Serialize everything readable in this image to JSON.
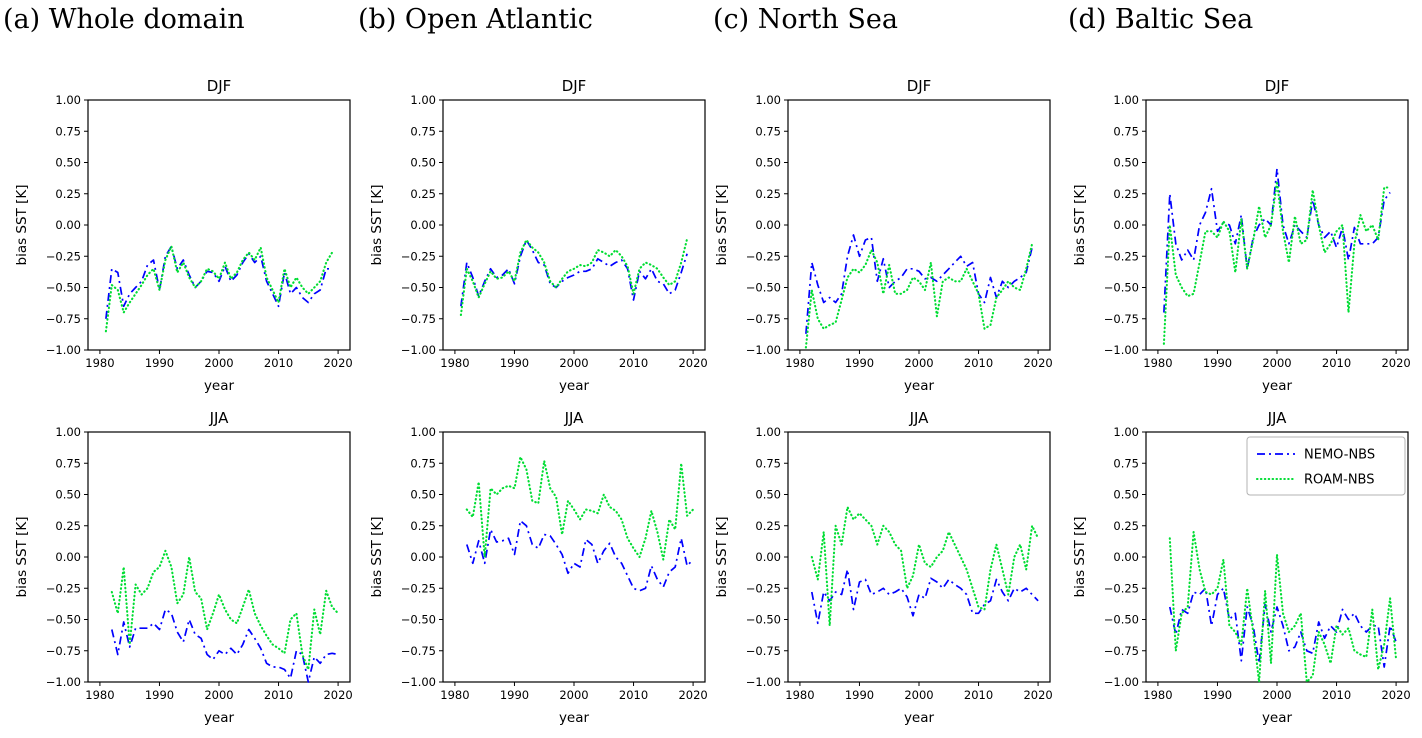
{
  "panels": [
    "(a) Whole domain",
    "(b) Open Atlantic",
    "(c) North Sea",
    "(d) Baltic Sea"
  ],
  "colors": {
    "nemo": "#0000ff",
    "roam": "#00dd33",
    "axis": "#000000",
    "legend_border": "#b3b3b3"
  },
  "legend": {
    "entries": [
      {
        "label": "NEMO-NBS",
        "style": "dashdot",
        "color_key": "nemo"
      },
      {
        "label": "ROAM-NBS",
        "style": "dotted",
        "color_key": "roam"
      }
    ],
    "position": "upper right",
    "panel": "d-jja"
  },
  "chart_data": [
    {
      "id": "a-djf",
      "type": "line",
      "title": "DJF",
      "panel": "(a) Whole domain",
      "xlabel": "year",
      "ylabel": "bias SST [K]",
      "xlim": [
        1978,
        2022
      ],
      "ylim": [
        -1,
        1
      ],
      "xticks": [
        1980,
        1990,
        2000,
        2010,
        2020
      ],
      "yticks": [
        1.0,
        0.75,
        0.5,
        0.25,
        0.0,
        -0.25,
        -0.5,
        -0.75,
        -1.0
      ],
      "x_start": 1981,
      "x_step": 1,
      "grid": false,
      "series": [
        {
          "name": "NEMO-NBS",
          "color_key": "nemo",
          "style": "dashdot",
          "values": [
            -0.75,
            -0.35,
            -0.38,
            -0.65,
            -0.55,
            -0.5,
            -0.45,
            -0.32,
            -0.28,
            -0.52,
            -0.25,
            -0.17,
            -0.35,
            -0.28,
            -0.4,
            -0.5,
            -0.45,
            -0.37,
            -0.38,
            -0.45,
            -0.33,
            -0.45,
            -0.4,
            -0.3,
            -0.23,
            -0.3,
            -0.25,
            -0.45,
            -0.55,
            -0.65,
            -0.38,
            -0.55,
            -0.5,
            -0.58,
            -0.62,
            -0.55,
            -0.52,
            -0.35,
            -0.35
          ]
        },
        {
          "name": "ROAM-NBS",
          "color_key": "roam",
          "style": "dotted",
          "values": [
            -0.85,
            -0.48,
            -0.52,
            -0.7,
            -0.62,
            -0.55,
            -0.48,
            -0.4,
            -0.35,
            -0.52,
            -0.28,
            -0.17,
            -0.38,
            -0.3,
            -0.42,
            -0.5,
            -0.45,
            -0.35,
            -0.37,
            -0.43,
            -0.3,
            -0.43,
            -0.38,
            -0.28,
            -0.22,
            -0.28,
            -0.18,
            -0.42,
            -0.52,
            -0.62,
            -0.35,
            -0.5,
            -0.42,
            -0.5,
            -0.55,
            -0.5,
            -0.45,
            -0.3,
            -0.22
          ]
        }
      ]
    },
    {
      "id": "b-djf",
      "type": "line",
      "title": "DJF",
      "panel": "(b) Open Atlantic",
      "xlabel": "year",
      "ylabel": "bias SST [K]",
      "xlim": [
        1978,
        2022
      ],
      "ylim": [
        -1,
        1
      ],
      "xticks": [
        1980,
        1990,
        2000,
        2010,
        2020
      ],
      "yticks": [
        1.0,
        0.75,
        0.5,
        0.25,
        0.0,
        -0.25,
        -0.5,
        -0.75,
        -1.0
      ],
      "x_start": 1981,
      "x_step": 1,
      "grid": false,
      "series": [
        {
          "name": "NEMO-NBS",
          "color_key": "nemo",
          "style": "dashdot",
          "values": [
            -0.65,
            -0.3,
            -0.42,
            -0.57,
            -0.45,
            -0.35,
            -0.42,
            -0.4,
            -0.35,
            -0.47,
            -0.25,
            -0.12,
            -0.2,
            -0.3,
            -0.32,
            -0.47,
            -0.5,
            -0.45,
            -0.42,
            -0.4,
            -0.37,
            -0.37,
            -0.35,
            -0.27,
            -0.3,
            -0.33,
            -0.3,
            -0.28,
            -0.35,
            -0.6,
            -0.37,
            -0.43,
            -0.35,
            -0.45,
            -0.47,
            -0.55,
            -0.52,
            -0.38,
            -0.23
          ]
        },
        {
          "name": "ROAM-NBS",
          "color_key": "roam",
          "style": "dotted",
          "values": [
            -0.72,
            -0.35,
            -0.45,
            -0.58,
            -0.47,
            -0.37,
            -0.43,
            -0.42,
            -0.37,
            -0.45,
            -0.22,
            -0.12,
            -0.18,
            -0.22,
            -0.3,
            -0.45,
            -0.5,
            -0.43,
            -0.37,
            -0.35,
            -0.32,
            -0.33,
            -0.3,
            -0.2,
            -0.22,
            -0.25,
            -0.2,
            -0.25,
            -0.33,
            -0.55,
            -0.35,
            -0.3,
            -0.32,
            -0.35,
            -0.42,
            -0.48,
            -0.45,
            -0.3,
            -0.11
          ]
        }
      ]
    },
    {
      "id": "c-djf",
      "type": "line",
      "title": "DJF",
      "panel": "(c) North Sea",
      "xlabel": "year",
      "ylabel": "bias SST [K]",
      "xlim": [
        1978,
        2022
      ],
      "ylim": [
        -1,
        1
      ],
      "xticks": [
        1980,
        1990,
        2000,
        2010,
        2020
      ],
      "yticks": [
        1.0,
        0.75,
        0.5,
        0.25,
        0.0,
        -0.25,
        -0.5,
        -0.75,
        -1.0
      ],
      "x_start": 1981,
      "x_step": 1,
      "grid": false,
      "series": [
        {
          "name": "NEMO-NBS",
          "color_key": "nemo",
          "style": "dashdot",
          "values": [
            -0.87,
            -0.3,
            -0.48,
            -0.62,
            -0.58,
            -0.62,
            -0.55,
            -0.25,
            -0.08,
            -0.25,
            -0.12,
            -0.1,
            -0.45,
            -0.27,
            -0.5,
            -0.45,
            -0.42,
            -0.35,
            -0.35,
            -0.37,
            -0.43,
            -0.42,
            -0.45,
            -0.4,
            -0.35,
            -0.3,
            -0.25,
            -0.33,
            -0.3,
            -0.55,
            -0.62,
            -0.42,
            -0.58,
            -0.45,
            -0.5,
            -0.45,
            -0.42,
            -0.38,
            -0.18
          ]
        },
        {
          "name": "ROAM-NBS",
          "color_key": "roam",
          "style": "dotted",
          "values": [
            -0.98,
            -0.52,
            -0.75,
            -0.83,
            -0.8,
            -0.78,
            -0.6,
            -0.42,
            -0.35,
            -0.38,
            -0.32,
            -0.2,
            -0.3,
            -0.55,
            -0.32,
            -0.55,
            -0.55,
            -0.52,
            -0.42,
            -0.45,
            -0.52,
            -0.3,
            -0.73,
            -0.45,
            -0.42,
            -0.45,
            -0.45,
            -0.35,
            -0.45,
            -0.55,
            -0.83,
            -0.8,
            -0.58,
            -0.52,
            -0.45,
            -0.5,
            -0.52,
            -0.35,
            -0.15
          ]
        }
      ]
    },
    {
      "id": "d-djf",
      "type": "line",
      "title": "DJF",
      "panel": "(d) Baltic Sea",
      "xlabel": "year",
      "ylabel": "bias SST [K]",
      "xlim": [
        1978,
        2022
      ],
      "ylim": [
        -1,
        1
      ],
      "xticks": [
        1980,
        1990,
        2000,
        2010,
        2020
      ],
      "yticks": [
        1.0,
        0.75,
        0.5,
        0.25,
        0.0,
        -0.25,
        -0.5,
        -0.75,
        -1.0
      ],
      "x_start": 1981,
      "x_step": 1,
      "grid": false,
      "series": [
        {
          "name": "NEMO-NBS",
          "color_key": "nemo",
          "style": "dashdot",
          "values": [
            -0.7,
            0.25,
            -0.15,
            -0.28,
            -0.2,
            -0.28,
            0.0,
            0.1,
            0.29,
            -0.05,
            0.02,
            0.0,
            -0.15,
            0.08,
            -0.35,
            -0.1,
            0.0,
            0.05,
            0.0,
            0.45,
            0.0,
            -0.15,
            0.0,
            -0.05,
            -0.1,
            0.2,
            0.0,
            -0.1,
            -0.05,
            -0.18,
            -0.02,
            -0.28,
            -0.02,
            -0.15,
            -0.15,
            -0.15,
            -0.1,
            0.2,
            0.26
          ]
        },
        {
          "name": "ROAM-NBS",
          "color_key": "roam",
          "style": "dotted",
          "values": [
            -0.95,
            0.0,
            -0.4,
            -0.5,
            -0.57,
            -0.55,
            -0.3,
            -0.05,
            -0.05,
            -0.1,
            0.03,
            -0.05,
            -0.38,
            0.05,
            -0.35,
            -0.12,
            0.15,
            -0.1,
            0.0,
            0.35,
            -0.05,
            -0.3,
            0.07,
            -0.15,
            -0.12,
            0.28,
            0.0,
            -0.22,
            -0.15,
            -0.05,
            0.0,
            -0.7,
            -0.15,
            0.08,
            -0.05,
            0.0,
            -0.12,
            0.3,
            0.3
          ]
        }
      ]
    },
    {
      "id": "a-jja",
      "type": "line",
      "title": "JJA",
      "panel": "(a) Whole domain",
      "xlabel": "year",
      "ylabel": "bias SST [K]",
      "xlim": [
        1978,
        2022
      ],
      "ylim": [
        -1,
        1
      ],
      "xticks": [
        1980,
        1990,
        2000,
        2010,
        2020
      ],
      "yticks": [
        1.0,
        0.75,
        0.5,
        0.25,
        0.0,
        -0.25,
        -0.5,
        -0.75,
        -1.0
      ],
      "x_start": 1982,
      "x_step": 1,
      "grid": false,
      "series": [
        {
          "name": "NEMO-NBS",
          "color_key": "nemo",
          "style": "dashdot",
          "values": [
            -0.58,
            -0.78,
            -0.52,
            -0.72,
            -0.57,
            -0.57,
            -0.57,
            -0.53,
            -0.58,
            -0.42,
            -0.45,
            -0.6,
            -0.68,
            -0.5,
            -0.62,
            -0.65,
            -0.78,
            -0.82,
            -0.75,
            -0.78,
            -0.73,
            -0.78,
            -0.7,
            -0.58,
            -0.65,
            -0.73,
            -0.85,
            -0.88,
            -0.88,
            -0.9,
            -0.97,
            -0.75,
            -0.78,
            -1.0,
            -0.8,
            -0.85,
            -0.78,
            -0.77,
            -0.78
          ]
        },
        {
          "name": "ROAM-NBS",
          "color_key": "roam",
          "style": "dotted",
          "values": [
            -0.28,
            -0.45,
            -0.08,
            -0.7,
            -0.22,
            -0.3,
            -0.25,
            -0.12,
            -0.08,
            0.05,
            -0.08,
            -0.37,
            -0.3,
            0.0,
            -0.28,
            -0.33,
            -0.58,
            -0.45,
            -0.3,
            -0.42,
            -0.5,
            -0.53,
            -0.4,
            -0.26,
            -0.45,
            -0.55,
            -0.63,
            -0.7,
            -0.73,
            -0.77,
            -0.5,
            -0.45,
            -0.78,
            -0.9,
            -0.42,
            -0.62,
            -0.27,
            -0.4,
            -0.45
          ]
        }
      ]
    },
    {
      "id": "b-jja",
      "type": "line",
      "title": "JJA",
      "panel": "(b) Open Atlantic",
      "xlabel": "year",
      "ylabel": "bias SST [K]",
      "xlim": [
        1978,
        2022
      ],
      "ylim": [
        -1,
        1
      ],
      "xticks": [
        1980,
        1990,
        2000,
        2010,
        2020
      ],
      "yticks": [
        1.0,
        0.75,
        0.5,
        0.25,
        0.0,
        -0.25,
        -0.5,
        -0.75,
        -1.0
      ],
      "x_start": 1982,
      "x_step": 1,
      "grid": false,
      "series": [
        {
          "name": "NEMO-NBS",
          "color_key": "nemo",
          "style": "dashdot",
          "values": [
            0.1,
            -0.05,
            0.13,
            -0.05,
            0.22,
            0.12,
            0.13,
            0.15,
            0.02,
            0.29,
            0.25,
            0.1,
            0.07,
            0.18,
            0.17,
            0.1,
            0.02,
            -0.13,
            -0.05,
            -0.08,
            0.14,
            0.1,
            -0.05,
            0.05,
            0.11,
            0.0,
            -0.05,
            -0.15,
            -0.25,
            -0.27,
            -0.25,
            -0.07,
            -0.18,
            -0.24,
            -0.12,
            -0.08,
            0.15,
            -0.07,
            -0.02
          ]
        },
        {
          "name": "ROAM-NBS",
          "color_key": "roam",
          "style": "dotted",
          "values": [
            0.38,
            0.32,
            0.6,
            0.0,
            0.55,
            0.5,
            0.55,
            0.57,
            0.55,
            0.8,
            0.7,
            0.45,
            0.43,
            0.77,
            0.55,
            0.48,
            0.18,
            0.45,
            0.38,
            0.3,
            0.38,
            0.37,
            0.35,
            0.5,
            0.4,
            0.37,
            0.3,
            0.15,
            0.07,
            0.0,
            0.15,
            0.37,
            0.2,
            -0.02,
            0.3,
            0.22,
            0.75,
            0.33,
            0.38
          ]
        }
      ]
    },
    {
      "id": "c-jja",
      "type": "line",
      "title": "JJA",
      "panel": "(c) North Sea",
      "xlabel": "year",
      "ylabel": "bias SST [K]",
      "xlim": [
        1978,
        2022
      ],
      "ylim": [
        -1,
        1
      ],
      "xticks": [
        1980,
        1990,
        2000,
        2010,
        2020
      ],
      "yticks": [
        1.0,
        0.75,
        0.5,
        0.25,
        0.0,
        -0.25,
        -0.5,
        -0.75,
        -1.0
      ],
      "x_start": 1982,
      "x_step": 1,
      "grid": false,
      "series": [
        {
          "name": "NEMO-NBS",
          "color_key": "nemo",
          "style": "dashdot",
          "values": [
            -0.28,
            -0.53,
            -0.28,
            -0.35,
            -0.28,
            -0.3,
            -0.1,
            -0.42,
            -0.2,
            -0.18,
            -0.3,
            -0.28,
            -0.25,
            -0.3,
            -0.28,
            -0.25,
            -0.32,
            -0.47,
            -0.3,
            -0.33,
            -0.17,
            -0.2,
            -0.25,
            -0.18,
            -0.22,
            -0.25,
            -0.3,
            -0.45,
            -0.45,
            -0.38,
            -0.35,
            -0.18,
            -0.28,
            -0.35,
            -0.25,
            -0.28,
            -0.25,
            -0.3,
            -0.35
          ]
        },
        {
          "name": "ROAM-NBS",
          "color_key": "roam",
          "style": "dotted",
          "values": [
            0.0,
            -0.18,
            0.2,
            -0.55,
            0.25,
            0.1,
            0.4,
            0.3,
            0.35,
            0.3,
            0.25,
            0.1,
            0.25,
            0.2,
            0.1,
            0.05,
            -0.25,
            -0.15,
            0.1,
            -0.05,
            -0.08,
            0.0,
            0.05,
            0.2,
            0.1,
            0.0,
            -0.1,
            -0.25,
            -0.4,
            -0.42,
            -0.1,
            0.1,
            -0.1,
            -0.3,
            0.0,
            0.1,
            -0.1,
            0.25,
            0.15
          ]
        }
      ]
    },
    {
      "id": "d-jja",
      "type": "line",
      "title": "JJA",
      "panel": "(d) Baltic Sea",
      "xlabel": "year",
      "ylabel": "bias SST [K]",
      "xlim": [
        1978,
        2022
      ],
      "ylim": [
        -1,
        1
      ],
      "xticks": [
        1980,
        1990,
        2000,
        2010,
        2020
      ],
      "yticks": [
        1.0,
        0.75,
        0.5,
        0.25,
        0.0,
        -0.25,
        -0.5,
        -0.75,
        -1.0
      ],
      "x_start": 1982,
      "x_step": 1,
      "grid": false,
      "legend": true,
      "series": [
        {
          "name": "NEMO-NBS",
          "color_key": "nemo",
          "style": "dashdot",
          "values": [
            -0.4,
            -0.62,
            -0.42,
            -0.45,
            -0.28,
            -0.3,
            -0.25,
            -0.55,
            -0.3,
            -0.25,
            -0.5,
            -0.45,
            -0.83,
            -0.4,
            -0.55,
            -0.85,
            -0.38,
            -0.6,
            -0.4,
            -0.55,
            -0.75,
            -0.72,
            -0.6,
            -0.75,
            -0.77,
            -0.52,
            -0.65,
            -0.55,
            -0.6,
            -0.42,
            -0.5,
            -0.45,
            -0.55,
            -0.6,
            -0.55,
            -0.55,
            -0.88,
            -0.55,
            -0.68
          ]
        },
        {
          "name": "ROAM-NBS",
          "color_key": "roam",
          "style": "dotted",
          "values": [
            0.15,
            -0.75,
            -0.45,
            -0.4,
            0.2,
            -0.1,
            -0.28,
            -0.3,
            -0.25,
            -0.02,
            -0.55,
            -0.6,
            -0.7,
            -0.25,
            -0.6,
            -1.0,
            -0.27,
            -0.85,
            0.02,
            -0.45,
            -0.6,
            -0.55,
            -0.45,
            -1.0,
            -0.95,
            -0.6,
            -0.7,
            -0.85,
            -0.55,
            -0.62,
            -0.57,
            -0.75,
            -0.78,
            -0.8,
            -0.42,
            -0.9,
            -0.7,
            -0.33,
            -0.82
          ]
        }
      ]
    }
  ]
}
